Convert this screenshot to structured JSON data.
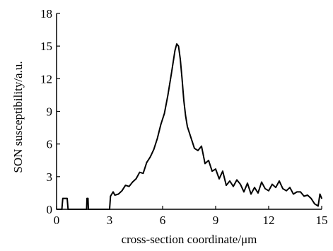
{
  "chart_data": {
    "type": "line",
    "title": "",
    "xlabel": "cross-section coordinate/μm",
    "ylabel": "SON susceptibility/a.u.",
    "xlim": [
      0,
      15
    ],
    "ylim": [
      0,
      18
    ],
    "xticks": [
      0,
      3,
      6,
      9,
      12,
      15
    ],
    "yticks": [
      0,
      3,
      6,
      9,
      12,
      15,
      18
    ],
    "xtick_labels": [
      "0",
      "3",
      "6",
      "9",
      "12",
      "15"
    ],
    "ytick_labels": [
      "0",
      "3",
      "6",
      "9",
      "12",
      "15",
      "18"
    ],
    "grid": false,
    "legend": "none",
    "line_color": "#000000",
    "series": [
      {
        "x": [
          0.0,
          0.3,
          0.35,
          0.6,
          0.65,
          1.7,
          1.72,
          1.78,
          1.8,
          3.0,
          3.05,
          3.2,
          3.3,
          3.5,
          3.7,
          3.9,
          4.1,
          4.3,
          4.5,
          4.7,
          4.9,
          5.1,
          5.3,
          5.5,
          5.7,
          5.9,
          6.1,
          6.3,
          6.5,
          6.7,
          6.8,
          6.9,
          7.0,
          7.1,
          7.2,
          7.3,
          7.4,
          7.6,
          7.8,
          8.0,
          8.2,
          8.4,
          8.6,
          8.8,
          9.0,
          9.2,
          9.4,
          9.6,
          9.8,
          10.0,
          10.2,
          10.4,
          10.6,
          10.8,
          11.0,
          11.2,
          11.4,
          11.6,
          11.8,
          12.0,
          12.2,
          12.4,
          12.6,
          12.8,
          13.0,
          13.2,
          13.4,
          13.6,
          13.8,
          14.0,
          14.2,
          14.4,
          14.6,
          14.8,
          14.9,
          15.0
        ],
        "y": [
          0.0,
          0.0,
          1.0,
          1.0,
          0.0,
          0.0,
          1.0,
          1.0,
          0.0,
          0.0,
          1.2,
          1.6,
          1.3,
          1.4,
          1.7,
          2.2,
          2.1,
          2.5,
          2.8,
          3.4,
          3.3,
          4.3,
          4.8,
          5.5,
          6.5,
          7.8,
          8.8,
          10.5,
          12.5,
          14.6,
          15.2,
          15.0,
          13.8,
          12.0,
          10.0,
          8.6,
          7.6,
          6.6,
          5.6,
          5.4,
          5.8,
          4.2,
          4.5,
          3.5,
          3.7,
          2.8,
          3.5,
          2.2,
          2.6,
          2.1,
          2.7,
          2.3,
          1.6,
          2.4,
          1.4,
          2.0,
          1.5,
          2.5,
          1.9,
          1.7,
          2.3,
          2.0,
          2.6,
          1.9,
          1.7,
          2.0,
          1.4,
          1.6,
          1.6,
          1.2,
          1.3,
          1.0,
          0.5,
          0.3,
          1.4,
          1.0
        ]
      }
    ]
  }
}
